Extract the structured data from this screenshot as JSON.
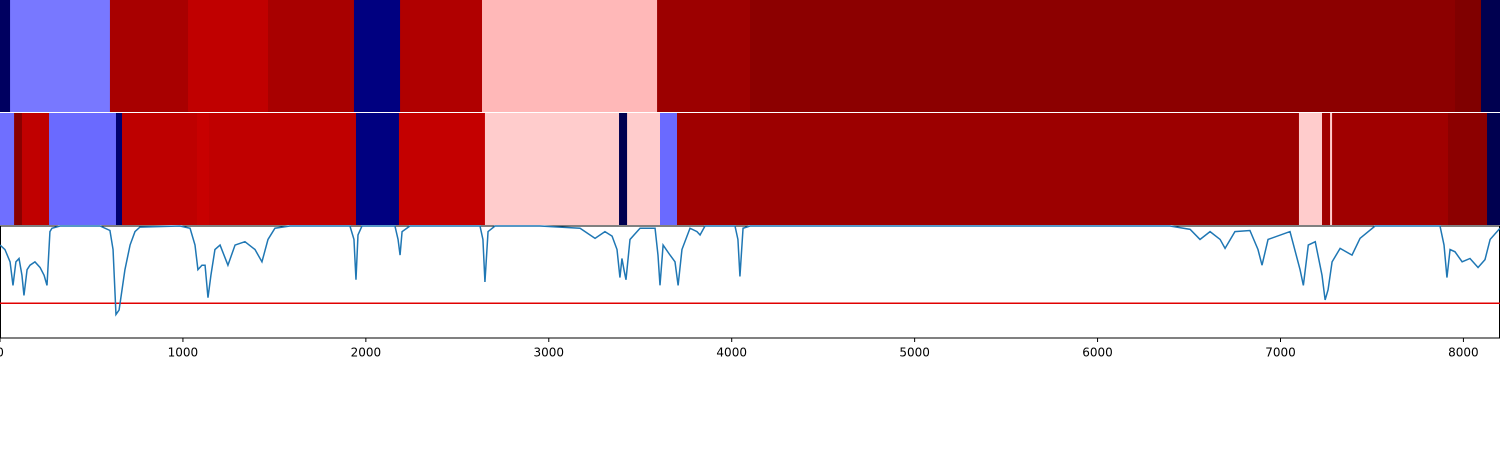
{
  "chart_data": {
    "type": "segments_and_line",
    "xlim": [
      0,
      8200
    ],
    "xticks": [
      0,
      1000,
      2000,
      3000,
      4000,
      5000,
      6000,
      7000,
      8000
    ],
    "strips": [
      {
        "segments": [
          {
            "start": 0,
            "end": 55,
            "color": "#000060"
          },
          {
            "start": 55,
            "end": 601,
            "color": "#7878ff"
          },
          {
            "start": 601,
            "end": 1028,
            "color": "#a80000"
          },
          {
            "start": 1028,
            "end": 1465,
            "color": "#c00000"
          },
          {
            "start": 1465,
            "end": 1935,
            "color": "#a80000"
          },
          {
            "start": 1935,
            "end": 2187,
            "color": "#000080"
          },
          {
            "start": 2187,
            "end": 2635,
            "color": "#b00000"
          },
          {
            "start": 2635,
            "end": 3592,
            "color": "#ffb8b8"
          },
          {
            "start": 3592,
            "end": 4100,
            "color": "#9c0000"
          },
          {
            "start": 4100,
            "end": 7954,
            "color": "#8c0000"
          },
          {
            "start": 7954,
            "end": 8096,
            "color": "#800000"
          },
          {
            "start": 8096,
            "end": 8200,
            "color": "#000050"
          }
        ]
      },
      {
        "segments": [
          {
            "start": 0,
            "end": 77,
            "color": "#6f6fff"
          },
          {
            "start": 77,
            "end": 120,
            "color": "#880000"
          },
          {
            "start": 120,
            "end": 268,
            "color": "#c00000"
          },
          {
            "start": 268,
            "end": 634,
            "color": "#6a6aff"
          },
          {
            "start": 634,
            "end": 667,
            "color": "#000070"
          },
          {
            "start": 667,
            "end": 1077,
            "color": "#be0000"
          },
          {
            "start": 1077,
            "end": 1143,
            "color": "#c80000"
          },
          {
            "start": 1143,
            "end": 1946,
            "color": "#c00000"
          },
          {
            "start": 1946,
            "end": 2181,
            "color": "#000080"
          },
          {
            "start": 2181,
            "end": 2651,
            "color": "#c40000"
          },
          {
            "start": 2651,
            "end": 3384,
            "color": "#ffcccc"
          },
          {
            "start": 3384,
            "end": 3428,
            "color": "#000050"
          },
          {
            "start": 3428,
            "end": 3608,
            "color": "#ffcccc"
          },
          {
            "start": 3608,
            "end": 3701,
            "color": "#6a6aff"
          },
          {
            "start": 3701,
            "end": 4045,
            "color": "#a00000"
          },
          {
            "start": 4045,
            "end": 7101,
            "color": "#9c0000"
          },
          {
            "start": 7101,
            "end": 7227,
            "color": "#ffcccc"
          },
          {
            "start": 7227,
            "end": 7271,
            "color": "#a00000"
          },
          {
            "start": 7271,
            "end": 7282,
            "color": "#ffcccc"
          },
          {
            "start": 7282,
            "end": 7916,
            "color": "#a00000"
          },
          {
            "start": 7916,
            "end": 8129,
            "color": "#8c0000"
          },
          {
            "start": 8129,
            "end": 8200,
            "color": "#000050"
          }
        ]
      }
    ],
    "ylim": [
      0,
      1
    ],
    "threshold": 0.31,
    "threshold_color": "#e00000",
    "series": [
      {
        "color": "#1f77b4",
        "x": [
          0,
          27,
          55,
          71,
          87,
          104,
          120,
          131,
          148,
          164,
          191,
          219,
          241,
          257,
          273,
          284,
          328,
          547,
          601,
          618,
          634,
          651,
          667,
          683,
          711,
          738,
          765,
          984,
          1039,
          1066,
          1082,
          1104,
          1121,
          1137,
          1153,
          1175,
          1203,
          1246,
          1285,
          1339,
          1394,
          1432,
          1465,
          1503,
          1585,
          1913,
          1935,
          1946,
          1957,
          1979,
          2159,
          2176,
          2187,
          2198,
          2241,
          2624,
          2640,
          2651,
          2668,
          2706,
          2952,
          3171,
          3253,
          3307,
          3346,
          3373,
          3389,
          3400,
          3411,
          3422,
          3444,
          3499,
          3581,
          3597,
          3608,
          3625,
          3663,
          3690,
          3707,
          3728,
          3772,
          3810,
          3827,
          3854,
          4018,
          4034,
          4045,
          4062,
          4100,
          6396,
          6506,
          6560,
          6615,
          6670,
          6697,
          6751,
          6833,
          6877,
          6899,
          6932,
          7052,
          7107,
          7125,
          7152,
          7190,
          7227,
          7244,
          7260,
          7282,
          7326,
          7391,
          7435,
          7517,
          7872,
          7894,
          7910,
          7927,
          7954,
          7993,
          8036,
          8080,
          8118,
          8146,
          8200
        ],
        "values": [
          0.83,
          0.79,
          0.68,
          0.47,
          0.68,
          0.71,
          0.56,
          0.38,
          0.61,
          0.65,
          0.68,
          0.63,
          0.56,
          0.47,
          0.95,
          0.98,
          1.0,
          1.0,
          0.96,
          0.79,
          0.21,
          0.25,
          0.43,
          0.61,
          0.83,
          0.95,
          0.99,
          1.0,
          0.98,
          0.83,
          0.61,
          0.65,
          0.65,
          0.36,
          0.56,
          0.79,
          0.83,
          0.65,
          0.83,
          0.86,
          0.79,
          0.68,
          0.88,
          0.98,
          1.0,
          1.0,
          0.88,
          0.52,
          0.92,
          1.0,
          1.0,
          0.88,
          0.74,
          0.95,
          1.0,
          1.0,
          0.88,
          0.5,
          0.95,
          1.0,
          1.0,
          0.98,
          0.89,
          0.95,
          0.91,
          0.79,
          0.54,
          0.71,
          0.61,
          0.52,
          0.88,
          0.98,
          0.98,
          0.74,
          0.47,
          0.83,
          0.74,
          0.68,
          0.47,
          0.79,
          0.98,
          0.95,
          0.92,
          1.0,
          1.0,
          0.88,
          0.55,
          0.98,
          1.0,
          1.0,
          0.97,
          0.88,
          0.95,
          0.88,
          0.8,
          0.95,
          0.96,
          0.79,
          0.65,
          0.88,
          0.95,
          0.61,
          0.47,
          0.83,
          0.86,
          0.56,
          0.34,
          0.43,
          0.68,
          0.8,
          0.74,
          0.89,
          1.0,
          1.0,
          0.83,
          0.54,
          0.79,
          0.77,
          0.68,
          0.71,
          0.63,
          0.7,
          0.88,
          0.98
        ]
      }
    ]
  }
}
